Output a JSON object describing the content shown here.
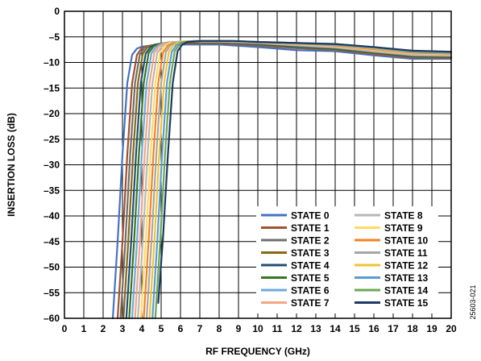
{
  "chart_data": {
    "type": "line",
    "title": "",
    "xlabel": "RF FREQUENCY (GHz)",
    "ylabel": "INSERTION LOSS (dB)",
    "xlim": [
      0,
      20
    ],
    "ylim": [
      -60,
      0
    ],
    "xticks": [
      0,
      1,
      2,
      3,
      4,
      5,
      6,
      7,
      8,
      9,
      10,
      11,
      12,
      13,
      14,
      15,
      16,
      17,
      18,
      19,
      20
    ],
    "yticks": [
      0,
      -5,
      -10,
      -15,
      -20,
      -25,
      -30,
      -35,
      -40,
      -45,
      -50,
      -55,
      -60
    ],
    "grid": true,
    "legend_position": "bottom-right",
    "figure_id": "25603-021",
    "series": [
      {
        "name": "STATE 0",
        "color": "#4472c4",
        "x": [
          2.5,
          2.75,
          3.0,
          3.25,
          3.5,
          3.75,
          4,
          5,
          6,
          8,
          10,
          12,
          14,
          16,
          18,
          20
        ],
        "y": [
          -60,
          -45,
          -28,
          -14,
          -8.5,
          -7.3,
          -6.9,
          -6.6,
          -6.5,
          -6.5,
          -7.0,
          -7.6,
          -7.8,
          -8.6,
          -9.3,
          -9.3
        ]
      },
      {
        "name": "STATE 1",
        "color": "#a0522d",
        "x": [
          2.75,
          3.0,
          3.25,
          3.5,
          3.75,
          4.0,
          4.25,
          5,
          6,
          8,
          10,
          12,
          14,
          16,
          18,
          20
        ],
        "y": [
          -60,
          -45,
          -28,
          -14,
          -8.5,
          -7.2,
          -6.8,
          -6.5,
          -6.3,
          -6.3,
          -6.7,
          -7.2,
          -7.6,
          -8.4,
          -9.1,
          -9.2
        ]
      },
      {
        "name": "STATE 2",
        "color": "#6f6f6f",
        "x": [
          2.9,
          3.15,
          3.4,
          3.65,
          3.9,
          4.15,
          4.4,
          5,
          6,
          8,
          10,
          12,
          14,
          16,
          18,
          20
        ],
        "y": [
          -60,
          -45,
          -28,
          -14,
          -8.4,
          -7.1,
          -6.7,
          -6.4,
          -6.2,
          -6.2,
          -6.6,
          -7.1,
          -7.5,
          -8.3,
          -9.0,
          -9.1
        ]
      },
      {
        "name": "STATE 3",
        "color": "#8b6914",
        "x": [
          3.05,
          3.3,
          3.55,
          3.8,
          4.05,
          4.3,
          4.55,
          5.2,
          6,
          8,
          10,
          12,
          14,
          16,
          18,
          20
        ],
        "y": [
          -60,
          -45,
          -28,
          -14,
          -8.3,
          -7.0,
          -6.6,
          -6.3,
          -6.1,
          -6.1,
          -6.5,
          -7.0,
          -7.4,
          -8.2,
          -8.9,
          -9.0
        ]
      },
      {
        "name": "STATE 4",
        "color": "#1f4e79",
        "x": [
          3.2,
          3.45,
          3.7,
          3.95,
          4.2,
          4.45,
          4.7,
          5.3,
          6,
          8,
          10,
          12,
          14,
          16,
          18,
          20
        ],
        "y": [
          -60,
          -45,
          -28,
          -14,
          -8.3,
          -7.0,
          -6.5,
          -6.2,
          -6.0,
          -6.0,
          -6.4,
          -6.9,
          -7.3,
          -8.1,
          -8.8,
          -8.9
        ]
      },
      {
        "name": "STATE 5",
        "color": "#38761d",
        "x": [
          3.35,
          3.6,
          3.85,
          4.1,
          4.35,
          4.6,
          4.85,
          5.4,
          6.2,
          8,
          10,
          12,
          14,
          16,
          18,
          20
        ],
        "y": [
          -60,
          -45,
          -28,
          -14,
          -8.2,
          -6.9,
          -6.4,
          -6.1,
          -5.9,
          -5.9,
          -6.3,
          -6.8,
          -7.2,
          -8.0,
          -8.7,
          -8.8
        ]
      },
      {
        "name": "STATE 6",
        "color": "#6fa8dc",
        "x": [
          3.5,
          3.75,
          4.0,
          4.25,
          4.5,
          4.75,
          5.0,
          5.6,
          6.4,
          8,
          10,
          12,
          14,
          16,
          18,
          20
        ],
        "y": [
          -60,
          -45,
          -28,
          -14,
          -8.2,
          -6.9,
          -6.4,
          -6.0,
          -5.9,
          -5.9,
          -6.2,
          -6.7,
          -7.1,
          -7.9,
          -8.6,
          -8.7
        ]
      },
      {
        "name": "STATE 7",
        "color": "#f4a582",
        "x": [
          3.65,
          3.9,
          4.15,
          4.4,
          4.65,
          4.9,
          5.15,
          5.8,
          6.6,
          8,
          10,
          12,
          14,
          16,
          18,
          20
        ],
        "y": [
          -60,
          -45,
          -28,
          -14,
          -8.1,
          -6.8,
          -6.3,
          -6.0,
          -5.9,
          -5.9,
          -6.2,
          -6.6,
          -7.0,
          -7.8,
          -8.5,
          -8.6
        ]
      },
      {
        "name": "STATE 8",
        "color": "#b7b7b7",
        "x": [
          3.8,
          4.05,
          4.3,
          4.55,
          4.8,
          5.05,
          5.3,
          6.0,
          6.8,
          8,
          10,
          12,
          14,
          16,
          18,
          20
        ],
        "y": [
          -60,
          -45,
          -28,
          -14,
          -8.1,
          -6.8,
          -6.3,
          -5.9,
          -5.9,
          -5.9,
          -6.1,
          -6.5,
          -6.9,
          -7.6,
          -8.3,
          -8.5
        ]
      },
      {
        "name": "STATE 9",
        "color": "#ffd966",
        "x": [
          3.95,
          4.2,
          4.45,
          4.7,
          4.95,
          5.2,
          5.45,
          6.1,
          7.0,
          8,
          10,
          12,
          14,
          16,
          18,
          20
        ],
        "y": [
          -60,
          -45,
          -28,
          -14,
          -8.0,
          -6.7,
          -6.2,
          -5.9,
          -5.8,
          -5.8,
          -6.0,
          -6.4,
          -6.8,
          -7.5,
          -8.2,
          -8.4
        ]
      },
      {
        "name": "STATE 10",
        "color": "#f58220",
        "x": [
          4.1,
          4.35,
          4.6,
          4.85,
          5.1,
          5.35,
          5.6,
          6.3,
          7.2,
          8,
          10,
          12,
          14,
          16,
          18,
          20
        ],
        "y": [
          -60,
          -45,
          -28,
          -14,
          -8.0,
          -6.7,
          -6.2,
          -5.9,
          -5.8,
          -5.8,
          -6.0,
          -6.3,
          -6.7,
          -7.4,
          -8.1,
          -8.3
        ]
      },
      {
        "name": "STATE 11",
        "color": "#a6a6a6",
        "x": [
          4.25,
          4.5,
          4.75,
          5.0,
          5.25,
          5.5,
          5.75,
          6.4,
          7.3,
          8,
          10,
          12,
          14,
          16,
          18,
          20
        ],
        "y": [
          -60,
          -45,
          -28,
          -14,
          -7.9,
          -6.6,
          -6.1,
          -5.9,
          -5.8,
          -5.8,
          -6.0,
          -6.3,
          -6.6,
          -7.3,
          -8.0,
          -8.2
        ]
      },
      {
        "name": "STATE 12",
        "color": "#f1c232",
        "x": [
          4.4,
          4.65,
          4.9,
          5.15,
          5.4,
          5.65,
          5.9,
          6.6,
          7.5,
          8.2,
          10,
          12,
          14,
          16,
          18,
          20
        ],
        "y": [
          -60,
          -45,
          -28,
          -14,
          -7.9,
          -6.6,
          -6.1,
          -5.8,
          -5.8,
          -5.8,
          -6.0,
          -6.2,
          -6.5,
          -7.2,
          -7.9,
          -8.1
        ]
      },
      {
        "name": "STATE 13",
        "color": "#5b9bd5",
        "x": [
          4.55,
          4.8,
          5.05,
          5.3,
          5.55,
          5.8,
          6.05,
          6.7,
          7.6,
          8.4,
          10,
          12,
          14,
          16,
          18,
          20
        ],
        "y": [
          -60,
          -45,
          -28,
          -14,
          -7.9,
          -6.6,
          -6.1,
          -5.8,
          -5.8,
          -5.8,
          -6.0,
          -6.2,
          -6.5,
          -7.1,
          -7.9,
          -8.1
        ]
      },
      {
        "name": "STATE 14",
        "color": "#6aa84f",
        "x": [
          4.7,
          4.95,
          5.2,
          5.45,
          5.7,
          5.95,
          6.2,
          6.9,
          7.8,
          8.6,
          10,
          12,
          14,
          16,
          18,
          20
        ],
        "y": [
          -60,
          -45,
          -28,
          -14,
          -7.8,
          -6.5,
          -6.0,
          -5.8,
          -5.8,
          -5.8,
          -6.0,
          -6.2,
          -6.4,
          -7.0,
          -7.8,
          -8.0
        ]
      },
      {
        "name": "STATE 15",
        "color": "#1f3864",
        "x": [
          4.85,
          5.1,
          5.35,
          5.6,
          5.85,
          6.1,
          6.35,
          7.1,
          8.0,
          8.8,
          10,
          12,
          14,
          16,
          18,
          20
        ],
        "y": [
          -57,
          -44,
          -28,
          -14,
          -7.8,
          -6.5,
          -6.0,
          -5.8,
          -5.8,
          -5.8,
          -6.0,
          -6.2,
          -6.4,
          -7.0,
          -7.7,
          -7.9
        ]
      }
    ]
  }
}
